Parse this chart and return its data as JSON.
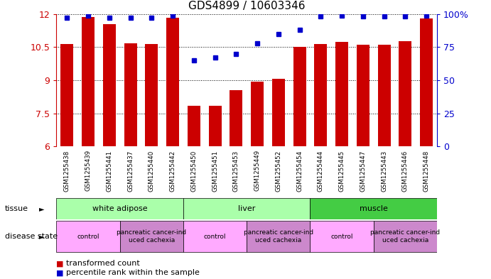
{
  "title": "GDS4899 / 10603346",
  "samples": [
    "GSM1255438",
    "GSM1255439",
    "GSM1255441",
    "GSM1255437",
    "GSM1255440",
    "GSM1255442",
    "GSM1255450",
    "GSM1255451",
    "GSM1255453",
    "GSM1255449",
    "GSM1255452",
    "GSM1255454",
    "GSM1255444",
    "GSM1255445",
    "GSM1255447",
    "GSM1255443",
    "GSM1255446",
    "GSM1255448"
  ],
  "transformed_count": [
    10.65,
    11.85,
    11.55,
    10.68,
    10.63,
    11.82,
    7.85,
    7.85,
    8.55,
    8.95,
    9.05,
    10.5,
    10.65,
    10.72,
    10.6,
    10.6,
    10.78,
    11.8
  ],
  "percentile_rank": [
    97,
    99,
    97,
    97,
    97,
    99,
    65,
    67,
    70,
    78,
    85,
    88,
    98,
    99,
    98,
    98,
    98,
    99
  ],
  "ylim_left": [
    6,
    12
  ],
  "ylim_right": [
    0,
    100
  ],
  "yticks_left": [
    6,
    7.5,
    9,
    10.5,
    12
  ],
  "yticks_right": [
    0,
    25,
    50,
    75,
    100
  ],
  "bar_color": "#cc0000",
  "dot_color": "#0000cc",
  "bg_color": "#ffffff",
  "tick_bg_color": "#cccccc",
  "tissue_groups": [
    {
      "label": "white adipose",
      "start": 0,
      "end": 6,
      "color": "#aaffaa"
    },
    {
      "label": "liver",
      "start": 6,
      "end": 12,
      "color": "#aaffaa"
    },
    {
      "label": "muscle",
      "start": 12,
      "end": 18,
      "color": "#44cc44"
    }
  ],
  "disease_groups": [
    {
      "label": "control",
      "start": 0,
      "end": 3,
      "color": "#ffaaff"
    },
    {
      "label": "pancreatic cancer-ind\nuced cachexia",
      "start": 3,
      "end": 6,
      "color": "#cc88cc"
    },
    {
      "label": "control",
      "start": 6,
      "end": 9,
      "color": "#ffaaff"
    },
    {
      "label": "pancreatic cancer-ind\nuced cachexia",
      "start": 9,
      "end": 12,
      "color": "#cc88cc"
    },
    {
      "label": "control",
      "start": 12,
      "end": 15,
      "color": "#ffaaff"
    },
    {
      "label": "pancreatic cancer-ind\nuced cachexia",
      "start": 15,
      "end": 18,
      "color": "#cc88cc"
    }
  ],
  "tissue_row_label": "tissue",
  "disease_row_label": "disease state",
  "legend_red": "transformed count",
  "legend_blue": "percentile rank within the sample",
  "left_axis_color": "#cc0000",
  "right_axis_color": "#0000cc"
}
